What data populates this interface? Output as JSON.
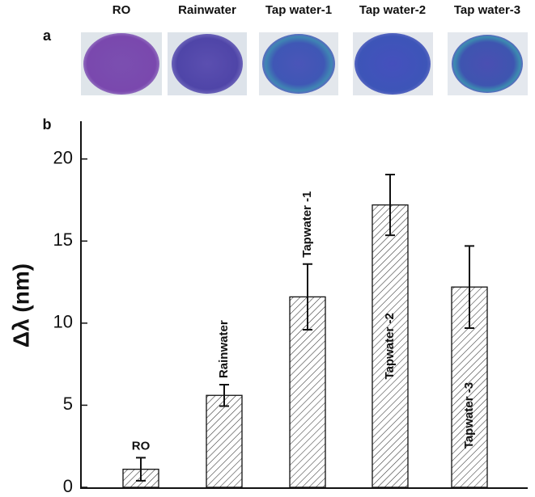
{
  "panel_a": {
    "label": "a",
    "samples": [
      "RO",
      "Rainwater",
      "Tap water-1",
      "Tap water-2",
      "Tap water-3"
    ]
  },
  "chart_data": {
    "type": "bar",
    "panel_label": "b",
    "ylabel": "Δλ (nm)",
    "categories": [
      "RO",
      "Rainwater",
      "Tapwater -1",
      "Tapwater -2",
      "Tapwater -3"
    ],
    "values": [
      1.1,
      5.6,
      11.6,
      17.2,
      12.2
    ],
    "errors": [
      0.7,
      0.65,
      2.0,
      1.85,
      2.5
    ],
    "color": "#333333",
    "ylim": [
      0,
      22.3
    ],
    "yticks": [
      0,
      5,
      10,
      15,
      20
    ]
  }
}
